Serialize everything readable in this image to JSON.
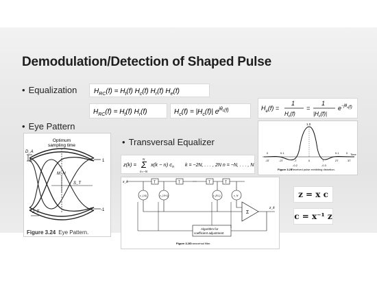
{
  "title": "Demodulation/Detection of Shaped Pulse",
  "bullets": {
    "equalization": "Equalization",
    "eye_pattern": "Eye Pattern",
    "transversal": "Transversal Equalizer"
  },
  "equations": {
    "hrc_full": "H_RC(f) = H_t(f) H_c(f) H_r(f) H_e(f)",
    "hrc_short": "H_RC(f) = H_t(f) H_r(f)",
    "hc_polar": "H_c(f) = |H_c(f)| e^{jθ_c(f)}",
    "he_inverse": "H_e(f) = 1 / H_c(f) = 1 / |H_c(f)| e^{-jθ_c(f)}",
    "zk_sum": "z(k) = Σ x(k − n) c_n   k = −2N, …, 2N   n = −N, …, N",
    "z_xc": "z = x c",
    "c_inv": "c = x⁻¹ z"
  },
  "eye_figure": {
    "label_optimum": "Optimum",
    "label_sampling": "sampling time",
    "label_da": "D_A",
    "label_mn": "M_N",
    "label_st": "S_T",
    "label_jt": "J_T",
    "label_one": "1",
    "label_minus_one": "-1",
    "caption_num": "Figure 3.24",
    "caption_text": "Eye Pattern."
  },
  "pulse_figure": {
    "peak_label": "1.0",
    "tick_labels": [
      "-3T",
      "-2T",
      "-T",
      "0",
      "T",
      "2T",
      "3T"
    ],
    "sample_labels": [
      "0",
      "0.1",
      "-0.2",
      "-0.3",
      "0.1",
      "0"
    ],
    "axis_label": "Time",
    "caption_num": "Figure 3.25",
    "caption_text": "Received pulse exhibiting distortion."
  },
  "filter_figure": {
    "input_label": "x_k",
    "output_label": "z_k",
    "delay_label": "T",
    "tap_labels": [
      "c_{-N}",
      "c_{-N+1}",
      "c_{N-1}",
      "c_N"
    ],
    "sum_label": "Σ",
    "algorithm_line1": "Algorithm for",
    "algorithm_line2": "coefficient adjustment",
    "caption_num": "Figure 3.26",
    "caption_text": "Transversal filter."
  },
  "colors": {
    "band": "#e8e8e8",
    "title": "#1e1e1e",
    "panel_border": "#cfcfcf"
  }
}
